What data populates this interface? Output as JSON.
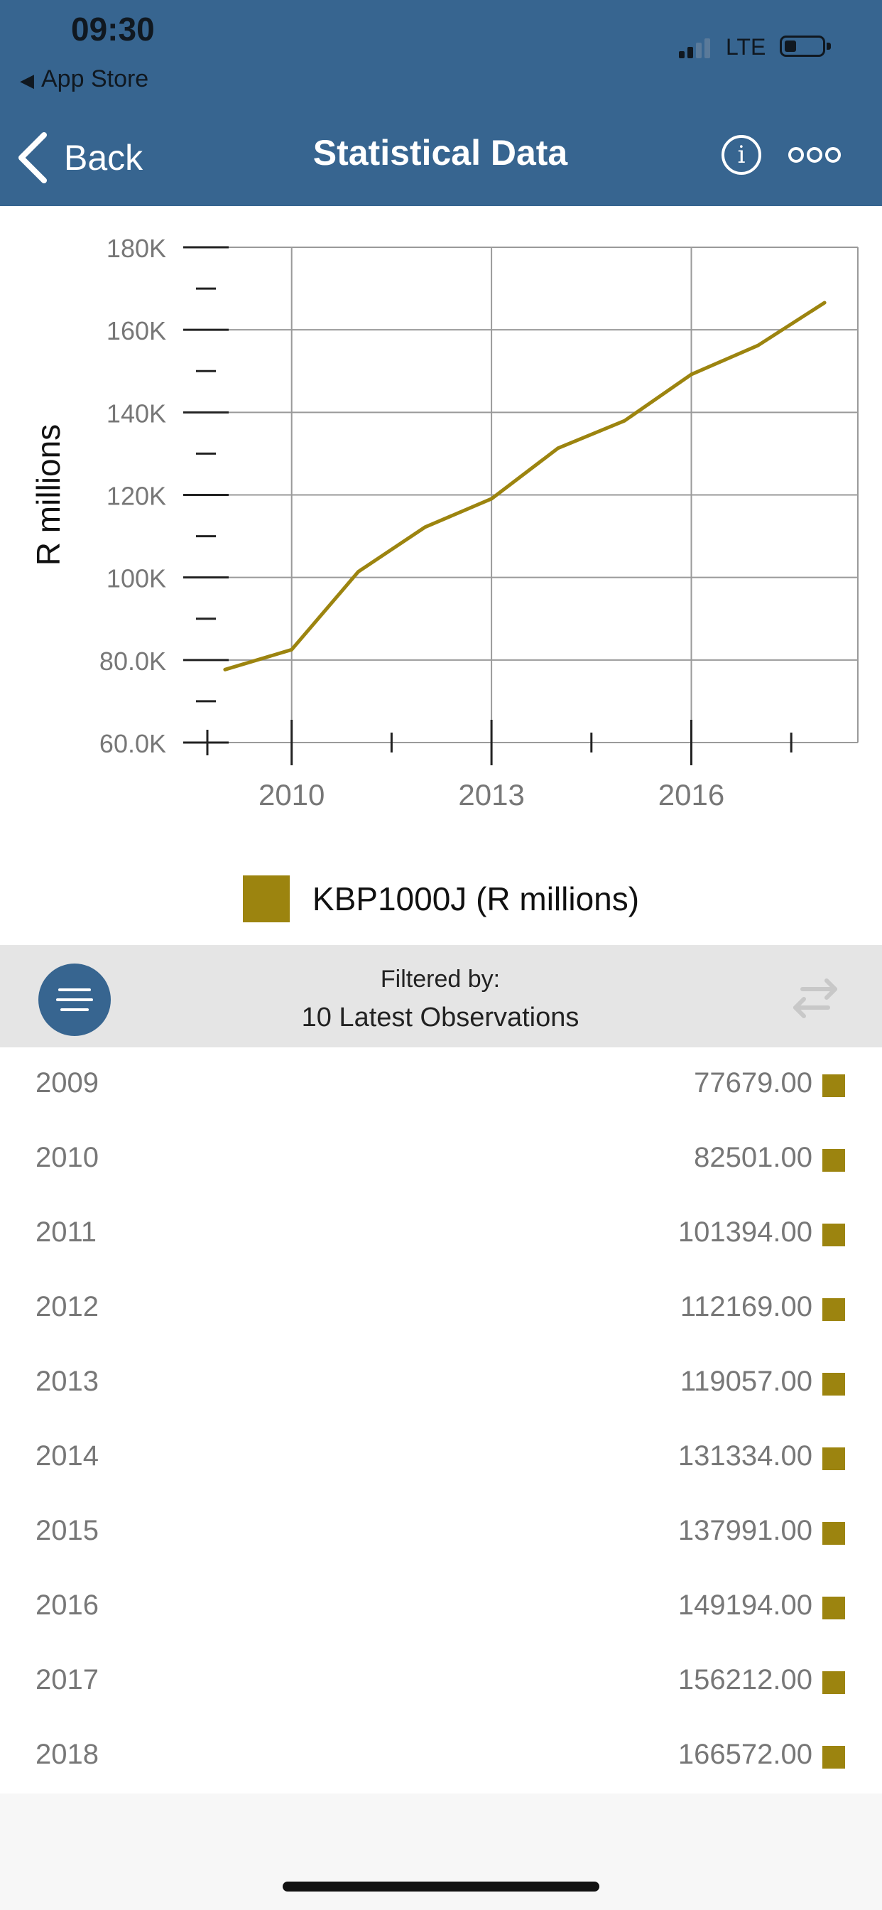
{
  "status_bar": {
    "time": "09:30",
    "back_app": "App Store",
    "network": "LTE"
  },
  "nav": {
    "back_label": "Back",
    "title": "Statistical Data"
  },
  "chart_data": {
    "type": "line",
    "ylabel": "R millions",
    "xlabel": "",
    "title": "",
    "x": [
      2009,
      2010,
      2011,
      2012,
      2013,
      2014,
      2015,
      2016,
      2017,
      2018
    ],
    "series": [
      {
        "name": "KBP1000J (R millions)",
        "values": [
          77679,
          82501,
          101394,
          112169,
          119057,
          131334,
          137991,
          149194,
          156212,
          166572
        ]
      }
    ],
    "ylim": [
      60000,
      180000
    ],
    "xlim": [
      2008.5,
      2018.5
    ],
    "yticks": [
      60000,
      80000,
      100000,
      120000,
      140000,
      160000,
      180000
    ],
    "ytick_labels": [
      "60.0K",
      "80.0K",
      "100K",
      "120K",
      "140K",
      "160K",
      "180K"
    ],
    "xticks": [
      2010,
      2013,
      2016
    ],
    "xtick_labels": [
      "2010",
      "2013",
      "2016"
    ],
    "grid": true,
    "legend_position": "bottom-center",
    "color": "#9c840f"
  },
  "legend": {
    "label": "KBP1000J (R millions)"
  },
  "filter": {
    "title": "Filtered by:",
    "value": "10 Latest Observations"
  },
  "observations": [
    {
      "year": "2009",
      "value": "77679.00"
    },
    {
      "year": "2010",
      "value": "82501.00"
    },
    {
      "year": "2011",
      "value": "101394.00"
    },
    {
      "year": "2012",
      "value": "112169.00"
    },
    {
      "year": "2013",
      "value": "119057.00"
    },
    {
      "year": "2014",
      "value": "131334.00"
    },
    {
      "year": "2015",
      "value": "137991.00"
    },
    {
      "year": "2016",
      "value": "149194.00"
    },
    {
      "year": "2017",
      "value": "156212.00"
    },
    {
      "year": "2018",
      "value": "166572.00"
    }
  ],
  "colors": {
    "header": "#376590",
    "series": "#9c840f",
    "filter_bar": "#e5e5e5"
  }
}
